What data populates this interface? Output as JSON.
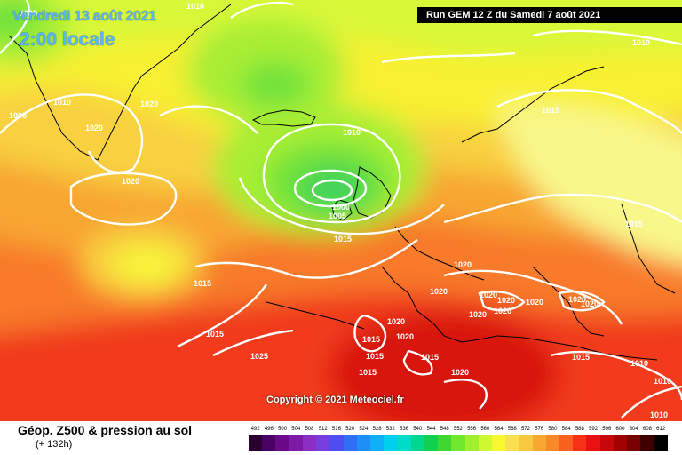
{
  "header": {
    "date": "Vendredi 13 août 2021",
    "time": "2:00 locale",
    "run": "Run GEM 12 Z du Samedi 7 août 2021"
  },
  "copyright": "Copyright © 2021 Meteociel.fr",
  "footer": {
    "field": "Géop. Z500 & pression au sol",
    "forecast_hour": "(+ 132h)"
  },
  "colorbar": {
    "labels": [
      "492",
      "496",
      "500",
      "504",
      "508",
      "512",
      "516",
      "520",
      "524",
      "528",
      "532",
      "536",
      "540",
      "544",
      "548",
      "552",
      "556",
      "560",
      "564",
      "568",
      "572",
      "576",
      "580",
      "584",
      "588",
      "592",
      "596",
      "600",
      "604",
      "608",
      "612"
    ],
    "colors": [
      "#2a0030",
      "#4b0066",
      "#6a0a8a",
      "#7e1aa8",
      "#8a2ec4",
      "#7a3ee0",
      "#4f4ef0",
      "#2f6ef5",
      "#1f8ff8",
      "#10b0f8",
      "#00cfee",
      "#00dcc8",
      "#00d890",
      "#10d050",
      "#40d830",
      "#70e830",
      "#a0f030",
      "#d0f830",
      "#f8f830",
      "#f8e050",
      "#f8c840",
      "#f8a830",
      "#f88828",
      "#f86020",
      "#f83018",
      "#e81010",
      "#c80808",
      "#a00000",
      "#780000",
      "#400000",
      "#000000"
    ]
  },
  "isobars": [
    "1005",
    "1010",
    "1010",
    "1005",
    "1010",
    "1020",
    "1020",
    "1020",
    "1010",
    "1000",
    "1005",
    "1015",
    "1015",
    "1015",
    "1015",
    "1020",
    "1020",
    "1020",
    "1020",
    "1020",
    "1020",
    "1020",
    "1020",
    "1020",
    "1015",
    "1020",
    "1020",
    "1015",
    "1015",
    "1015",
    "1020",
    "1025",
    "1015",
    "1015",
    "1010",
    "1010",
    "1010"
  ],
  "map": {
    "palette": {
      "green": "#7ee33d",
      "yellow": "#f8f52e",
      "orange": "#f7a832",
      "red": "#f53d1e",
      "isobar": "#ffffff",
      "coast": "#000000"
    }
  }
}
